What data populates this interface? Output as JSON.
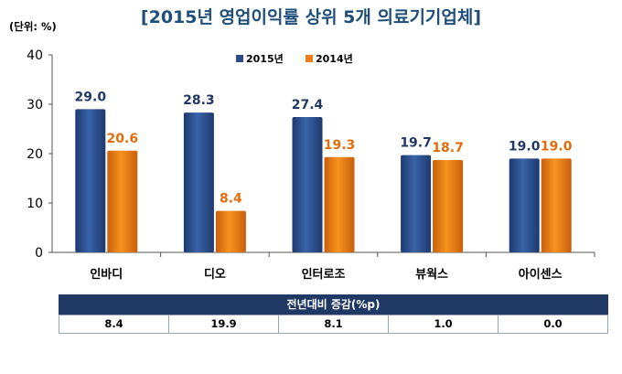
{
  "title": "[2015년 영업이익률 상위 5개 의료기기업체]",
  "unit_label": "(단위: %)",
  "colors": {
    "s2015": "#2a4b86",
    "s2014": "#ed7d1c",
    "label2015": "#1f3864",
    "label2014": "#e36c09",
    "table_header": "#1f3864"
  },
  "chart_data": {
    "type": "bar",
    "title": "[2015년 영업이익률 상위 5개 의료기기업체]",
    "ylabel": "(단위: %)",
    "categories": [
      "인바디",
      "디오",
      "인터로조",
      "뷰웍스",
      "아이센스"
    ],
    "series": [
      {
        "name": "2015년",
        "values": [
          29.0,
          28.3,
          27.4,
          19.7,
          19.0
        ]
      },
      {
        "name": "2014년",
        "values": [
          20.6,
          8.4,
          19.3,
          18.7,
          19.0
        ]
      }
    ],
    "ylim": [
      0,
      40
    ],
    "yticks": [
      0,
      10,
      20,
      30,
      40
    ],
    "legend_position": "top",
    "grid": false
  },
  "table": {
    "header": "전년대비 증감(%p)",
    "values": [
      "8.4",
      "19.9",
      "8.1",
      "1.0",
      "0.0"
    ]
  }
}
